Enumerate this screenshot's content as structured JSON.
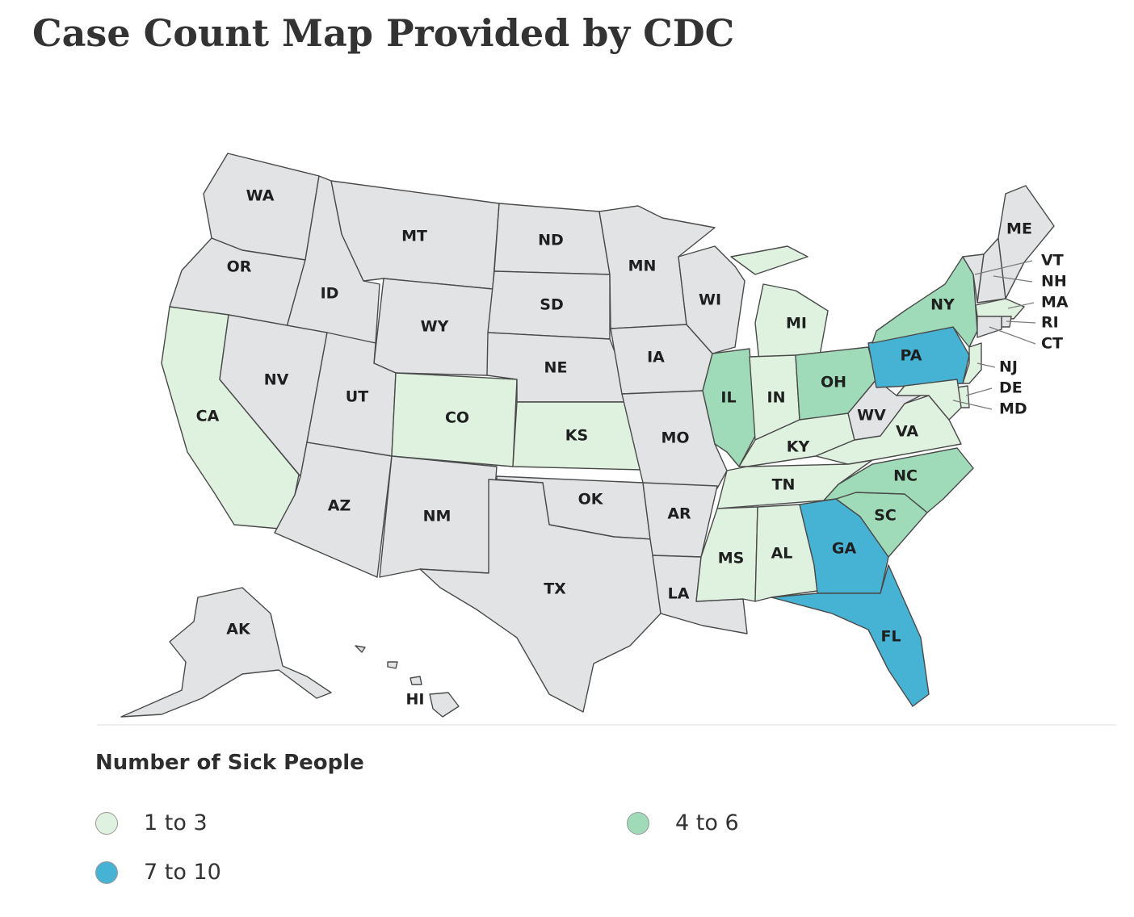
{
  "page": {
    "title": "Case Count Map Provided by CDC"
  },
  "colors": {
    "none": "#e2e3e5",
    "low": "#dff2df",
    "mid": "#9fdbb8",
    "high": "#47b3d4",
    "border": "#4a4a4a"
  },
  "legend": {
    "title": "Number of Sick People",
    "items": [
      {
        "label": "1 to 3",
        "color": "#dff2df"
      },
      {
        "label": "4 to 6",
        "color": "#9fdbb8"
      },
      {
        "label": "7 to 10",
        "color": "#47b3d4"
      }
    ]
  },
  "states": [
    {
      "abbr": "WA",
      "category": "none"
    },
    {
      "abbr": "OR",
      "category": "none"
    },
    {
      "abbr": "CA",
      "category": "1 to 3"
    },
    {
      "abbr": "ID",
      "category": "none"
    },
    {
      "abbr": "NV",
      "category": "none"
    },
    {
      "abbr": "MT",
      "category": "none"
    },
    {
      "abbr": "WY",
      "category": "none"
    },
    {
      "abbr": "UT",
      "category": "none"
    },
    {
      "abbr": "AZ",
      "category": "none"
    },
    {
      "abbr": "CO",
      "category": "1 to 3"
    },
    {
      "abbr": "NM",
      "category": "none"
    },
    {
      "abbr": "ND",
      "category": "none"
    },
    {
      "abbr": "SD",
      "category": "none"
    },
    {
      "abbr": "NE",
      "category": "none"
    },
    {
      "abbr": "KS",
      "category": "1 to 3"
    },
    {
      "abbr": "OK",
      "category": "none"
    },
    {
      "abbr": "TX",
      "category": "none"
    },
    {
      "abbr": "MN",
      "category": "none"
    },
    {
      "abbr": "IA",
      "category": "none"
    },
    {
      "abbr": "MO",
      "category": "none"
    },
    {
      "abbr": "AR",
      "category": "none"
    },
    {
      "abbr": "LA",
      "category": "none"
    },
    {
      "abbr": "WI",
      "category": "none"
    },
    {
      "abbr": "IL",
      "category": "4 to 6"
    },
    {
      "abbr": "MI",
      "category": "1 to 3"
    },
    {
      "abbr": "IN",
      "category": "1 to 3"
    },
    {
      "abbr": "OH",
      "category": "4 to 6"
    },
    {
      "abbr": "KY",
      "category": "1 to 3"
    },
    {
      "abbr": "TN",
      "category": "1 to 3"
    },
    {
      "abbr": "MS",
      "category": "1 to 3"
    },
    {
      "abbr": "AL",
      "category": "1 to 3"
    },
    {
      "abbr": "GA",
      "category": "7 to 10"
    },
    {
      "abbr": "FL",
      "category": "7 to 10"
    },
    {
      "abbr": "SC",
      "category": "4 to 6"
    },
    {
      "abbr": "NC",
      "category": "4 to 6"
    },
    {
      "abbr": "VA",
      "category": "1 to 3"
    },
    {
      "abbr": "WV",
      "category": "none"
    },
    {
      "abbr": "PA",
      "category": "7 to 10"
    },
    {
      "abbr": "NY",
      "category": "4 to 6"
    },
    {
      "abbr": "VT",
      "category": "none"
    },
    {
      "abbr": "NH",
      "category": "none"
    },
    {
      "abbr": "ME",
      "category": "none"
    },
    {
      "abbr": "MA",
      "category": "1 to 3"
    },
    {
      "abbr": "RI",
      "category": "none"
    },
    {
      "abbr": "CT",
      "category": "none"
    },
    {
      "abbr": "NJ",
      "category": "1 to 3"
    },
    {
      "abbr": "DE",
      "category": "1 to 3"
    },
    {
      "abbr": "MD",
      "category": "1 to 3"
    },
    {
      "abbr": "AK",
      "category": "none"
    },
    {
      "abbr": "HI",
      "category": "none"
    }
  ]
}
